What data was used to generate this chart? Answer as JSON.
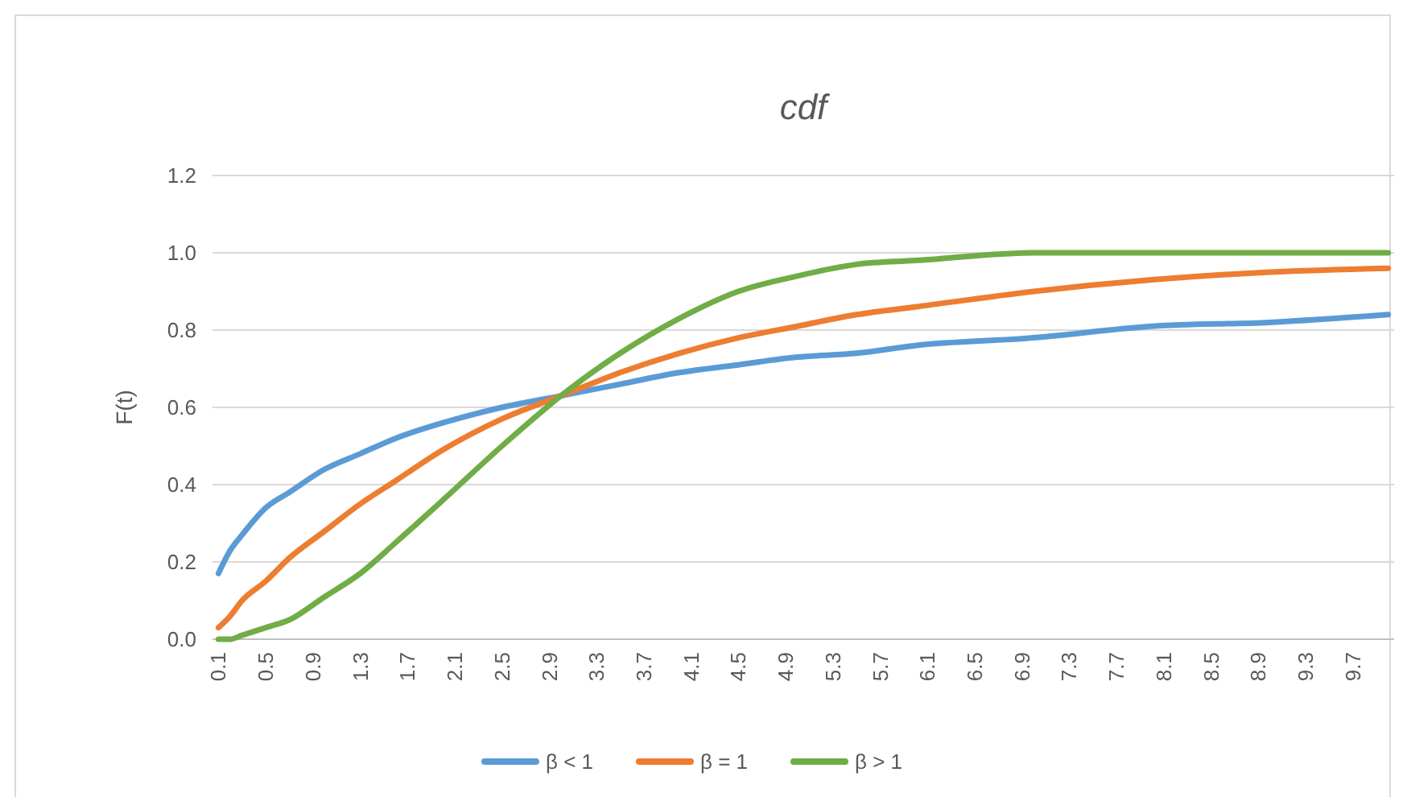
{
  "chart_data": {
    "type": "line",
    "title": "cdf",
    "ylabel": "F(t)",
    "x": [
      0.1,
      0.2,
      0.3,
      0.5,
      0.7,
      1.0,
      1.3,
      1.6,
      2.0,
      2.5,
      3.0,
      3.5,
      4.0,
      4.5,
      5.0,
      5.5,
      6.0,
      7.0,
      8.0,
      9.0,
      10.0
    ],
    "series": [
      {
        "name": "β < 1",
        "color": "#5b9bd5",
        "values": [
          0.17,
          0.23,
          0.27,
          0.34,
          0.38,
          0.44,
          0.48,
          0.52,
          0.56,
          0.6,
          0.63,
          0.66,
          0.69,
          0.71,
          0.73,
          0.74,
          0.76,
          0.78,
          0.81,
          0.82,
          0.84
        ]
      },
      {
        "name": "β = 1",
        "color": "#ed7d31",
        "values": [
          0.03,
          0.06,
          0.1,
          0.15,
          0.21,
          0.28,
          0.35,
          0.41,
          0.49,
          0.57,
          0.63,
          0.69,
          0.74,
          0.78,
          0.81,
          0.84,
          0.86,
          0.9,
          0.93,
          0.95,
          0.96
        ]
      },
      {
        "name": "β > 1",
        "color": "#70ad47",
        "values": [
          0.0,
          0.0,
          0.01,
          0.03,
          0.05,
          0.11,
          0.17,
          0.25,
          0.36,
          0.5,
          0.63,
          0.74,
          0.83,
          0.9,
          0.94,
          0.97,
          0.98,
          1.0,
          1.0,
          1.0,
          1.0
        ]
      }
    ],
    "xlim": [
      0.05,
      10.05
    ],
    "xticks": [
      0.1,
      0.5,
      0.9,
      1.3,
      1.7,
      2.1,
      2.5,
      2.9,
      3.3,
      3.7,
      4.1,
      4.5,
      4.9,
      5.3,
      5.7,
      6.1,
      6.5,
      6.9,
      7.3,
      7.7,
      8.1,
      8.5,
      8.9,
      9.3,
      9.7
    ],
    "ylim": [
      0,
      1.2
    ],
    "yticks": [
      {
        "value": 0,
        "label": "0.0"
      },
      {
        "value": 0.2,
        "label": "0.2"
      },
      {
        "value": 0.4,
        "label": "0.4"
      },
      {
        "value": 0.6,
        "label": "0.6"
      },
      {
        "value": 0.8,
        "label": "0.8"
      },
      {
        "value": 1.0,
        "label": "1.0"
      },
      {
        "value": 1.2,
        "label": "1.2"
      }
    ],
    "grid": "y",
    "legend": "bottom",
    "marker": "none",
    "line_style": "solid"
  }
}
